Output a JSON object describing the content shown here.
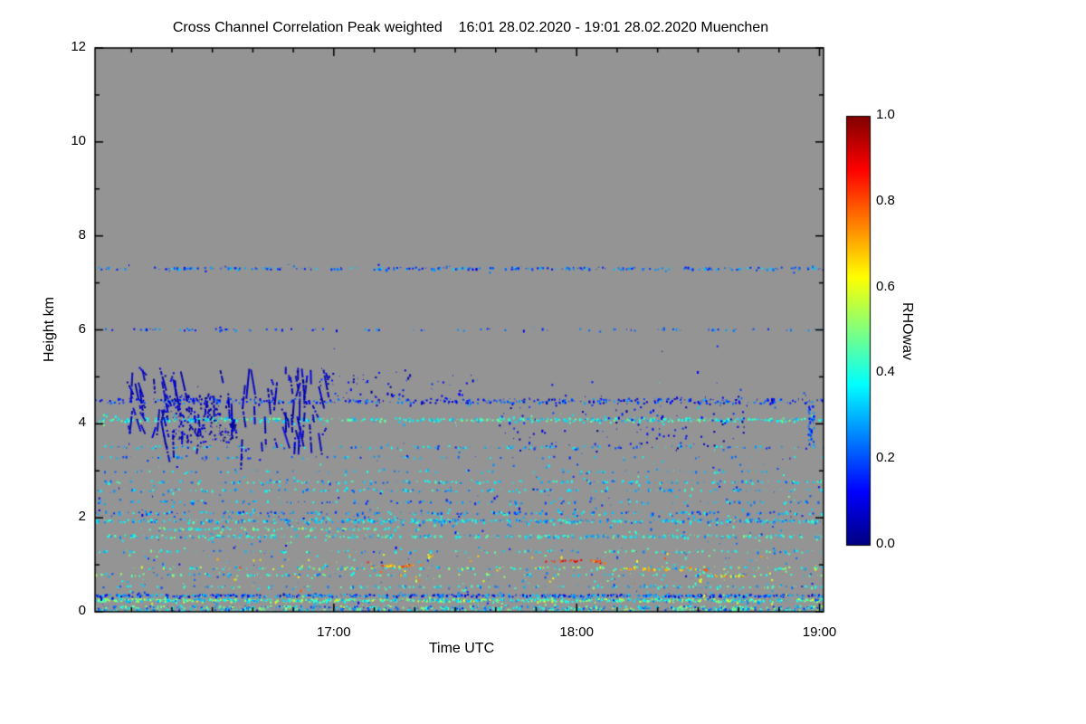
{
  "title": "Cross Channel Correlation Peak weighted    16:01 28.02.2020 - 19:01 28.02.2020 Muenchen",
  "chart_data": {
    "type": "heatmap",
    "title_main": "Cross Channel Correlation Peak weighted",
    "time_start": "16:01 28.02.2020",
    "time_end": "19:01 28.02.2020",
    "station": "Muenchen",
    "xlabel": "Time UTC",
    "ylabel": "Height km",
    "colorbar_label": "RHOwav",
    "colormap": "jet",
    "background_color": "#949494",
    "value_range": [
      0,
      1
    ],
    "colorbar_ticks": [
      "0.0",
      "0.2",
      "0.4",
      "0.6",
      "0.8",
      "1.0"
    ],
    "x_range_minutes": [
      1,
      181
    ],
    "x_ticks": [
      {
        "minute": 60,
        "label": "17:00"
      },
      {
        "minute": 120,
        "label": "18:00"
      },
      {
        "minute": 180,
        "label": "19:00"
      }
    ],
    "x_minor_step_min": 10,
    "ylim": [
      0,
      12
    ],
    "y_ticks": [
      0,
      2,
      4,
      6,
      8,
      10,
      12
    ],
    "y_minor_step": 1,
    "bands": [
      {
        "name": "surface-layer",
        "h": 0.08,
        "dh": 0.12,
        "t": [
          1,
          181
        ],
        "density": 0.5,
        "v": [
          0.15,
          0.55
        ]
      },
      {
        "name": "dense-band-low",
        "h": 0.26,
        "dh": 0.06,
        "t": [
          1,
          181
        ],
        "density": 0.95,
        "v": [
          0.25,
          0.6
        ]
      },
      {
        "name": "dense-band-top",
        "h": 0.36,
        "dh": 0.05,
        "t": [
          1,
          181
        ],
        "density": 0.85,
        "v": [
          0.05,
          0.35
        ]
      },
      {
        "name": "line-0p55",
        "h": 0.55,
        "dh": 0.04,
        "t": [
          1,
          181
        ],
        "density": 0.28,
        "v": [
          0.2,
          0.5
        ]
      },
      {
        "name": "line-0p8",
        "h": 0.8,
        "dh": 0.05,
        "t": [
          1,
          181
        ],
        "density": 0.22,
        "v": [
          0.2,
          0.55
        ]
      },
      {
        "name": "line-0p95",
        "h": 0.95,
        "dh": 0.05,
        "t": [
          10,
          181
        ],
        "density": 0.28,
        "v": [
          0.25,
          0.6
        ]
      },
      {
        "name": "hot-spots-1710",
        "h": 1.0,
        "dh": 0.06,
        "t": [
          68,
          82
        ],
        "density": 0.4,
        "v": [
          0.6,
          0.85
        ]
      },
      {
        "name": "red-segment-1800",
        "h": 1.1,
        "dh": 0.04,
        "t": [
          112,
          126
        ],
        "density": 0.6,
        "v": [
          0.78,
          0.95
        ]
      },
      {
        "name": "orange-segment-1815",
        "h": 0.92,
        "dh": 0.05,
        "t": [
          130,
          152
        ],
        "density": 0.4,
        "v": [
          0.62,
          0.82
        ]
      },
      {
        "name": "orange-segment-1835",
        "h": 0.78,
        "dh": 0.04,
        "t": [
          148,
          163
        ],
        "density": 0.35,
        "v": [
          0.58,
          0.78
        ]
      },
      {
        "name": "line-1p3",
        "h": 1.3,
        "dh": 0.05,
        "t": [
          1,
          181
        ],
        "density": 0.22,
        "v": [
          0.2,
          0.5
        ]
      },
      {
        "name": "line-1p6",
        "h": 1.62,
        "dh": 0.06,
        "t": [
          1,
          181
        ],
        "density": 0.4,
        "v": [
          0.25,
          0.5
        ]
      },
      {
        "name": "line-1p78",
        "h": 1.78,
        "dh": 0.05,
        "t": [
          12,
          75
        ],
        "density": 0.45,
        "v": [
          0.3,
          0.55
        ]
      },
      {
        "name": "line-1p95",
        "h": 1.95,
        "dh": 0.07,
        "t": [
          1,
          181
        ],
        "density": 0.5,
        "v": [
          0.2,
          0.45
        ]
      },
      {
        "name": "line-2p1",
        "h": 2.12,
        "dh": 0.05,
        "t": [
          1,
          181
        ],
        "density": 0.3,
        "v": [
          0.15,
          0.4
        ]
      },
      {
        "name": "line-2p35",
        "h": 2.35,
        "dh": 0.05,
        "t": [
          1,
          181
        ],
        "density": 0.18,
        "v": [
          0.15,
          0.4
        ]
      },
      {
        "name": "line-2p6",
        "h": 2.6,
        "dh": 0.05,
        "t": [
          1,
          181
        ],
        "density": 0.25,
        "v": [
          0.2,
          0.45
        ]
      },
      {
        "name": "line-2p78",
        "h": 2.78,
        "dh": 0.05,
        "t": [
          1,
          181
        ],
        "density": 0.3,
        "v": [
          0.2,
          0.45
        ]
      },
      {
        "name": "line-3p0",
        "h": 3.0,
        "dh": 0.04,
        "t": [
          1,
          181
        ],
        "density": 0.13,
        "v": [
          0.2,
          0.4
        ]
      },
      {
        "name": "line-3p3",
        "h": 3.3,
        "dh": 0.04,
        "t": [
          1,
          181
        ],
        "density": 0.13,
        "v": [
          0.15,
          0.4
        ]
      },
      {
        "name": "line-3p5",
        "h": 3.52,
        "dh": 0.05,
        "t": [
          1,
          181
        ],
        "density": 0.2,
        "v": [
          0.15,
          0.4
        ]
      },
      {
        "name": "line-4p1",
        "h": 4.1,
        "dh": 0.07,
        "t": [
          1,
          181
        ],
        "density": 0.55,
        "v": [
          0.28,
          0.5
        ]
      },
      {
        "name": "line-4p5",
        "h": 4.5,
        "dh": 0.1,
        "t": [
          1,
          181
        ],
        "density": 0.3,
        "v": [
          0.05,
          0.3
        ]
      },
      {
        "name": "line-6p0",
        "h": 6.02,
        "dh": 0.04,
        "t": [
          1,
          181
        ],
        "density": 0.16,
        "v": [
          0.1,
          0.3
        ]
      },
      {
        "name": "line-7p3",
        "h": 7.32,
        "dh": 0.05,
        "t": [
          1,
          181
        ],
        "density": 0.4,
        "v": [
          0.1,
          0.35
        ]
      },
      {
        "name": "scatter-low",
        "h": 1.1,
        "dh": 2.2,
        "t": [
          1,
          181
        ],
        "density": 0.011,
        "v": [
          0.1,
          0.5
        ]
      },
      {
        "name": "scatter-mid",
        "h": 2.8,
        "dh": 1.6,
        "t": [
          1,
          181
        ],
        "density": 0.007,
        "v": [
          0.1,
          0.45
        ]
      },
      {
        "name": "streak-core-1",
        "h": 4.35,
        "dh": 0.55,
        "t": [
          18,
          32
        ],
        "density": 0.2,
        "v": [
          0.0,
          0.12
        ]
      },
      {
        "name": "streak-core-2",
        "h": 3.85,
        "dh": 0.5,
        "t": [
          20,
          36
        ],
        "density": 0.16,
        "v": [
          0.0,
          0.12
        ]
      },
      {
        "name": "blue-speckle-late",
        "h": 4.0,
        "dh": 1.2,
        "t": [
          100,
          162
        ],
        "density": 0.025,
        "v": [
          0.0,
          0.2
        ]
      },
      {
        "name": "streaks-1705",
        "h": 4.9,
        "dh": 0.6,
        "t": [
          55,
          80
        ],
        "density": 0.04,
        "v": [
          0.0,
          0.2
        ]
      },
      {
        "name": "streaks-1725",
        "h": 4.8,
        "dh": 0.5,
        "t": [
          83,
          97
        ],
        "density": 0.03,
        "v": [
          0.05,
          0.25
        ]
      },
      {
        "name": "warm-dots",
        "h": 0.95,
        "dh": 0.6,
        "t": [
          30,
          170
        ],
        "density": 0.01,
        "v": [
          0.55,
          0.8
        ]
      },
      {
        "name": "vertical-dash-1857",
        "h": 4.0,
        "dh": 0.9,
        "t": [
          177,
          178.5
        ],
        "density": 0.5,
        "v": [
          0.12,
          0.3
        ]
      }
    ],
    "streaks": {
      "t": [
        8,
        58
      ],
      "h": [
        3.6,
        5.25
      ],
      "count": 90,
      "v": [
        0.0,
        0.12
      ]
    }
  }
}
